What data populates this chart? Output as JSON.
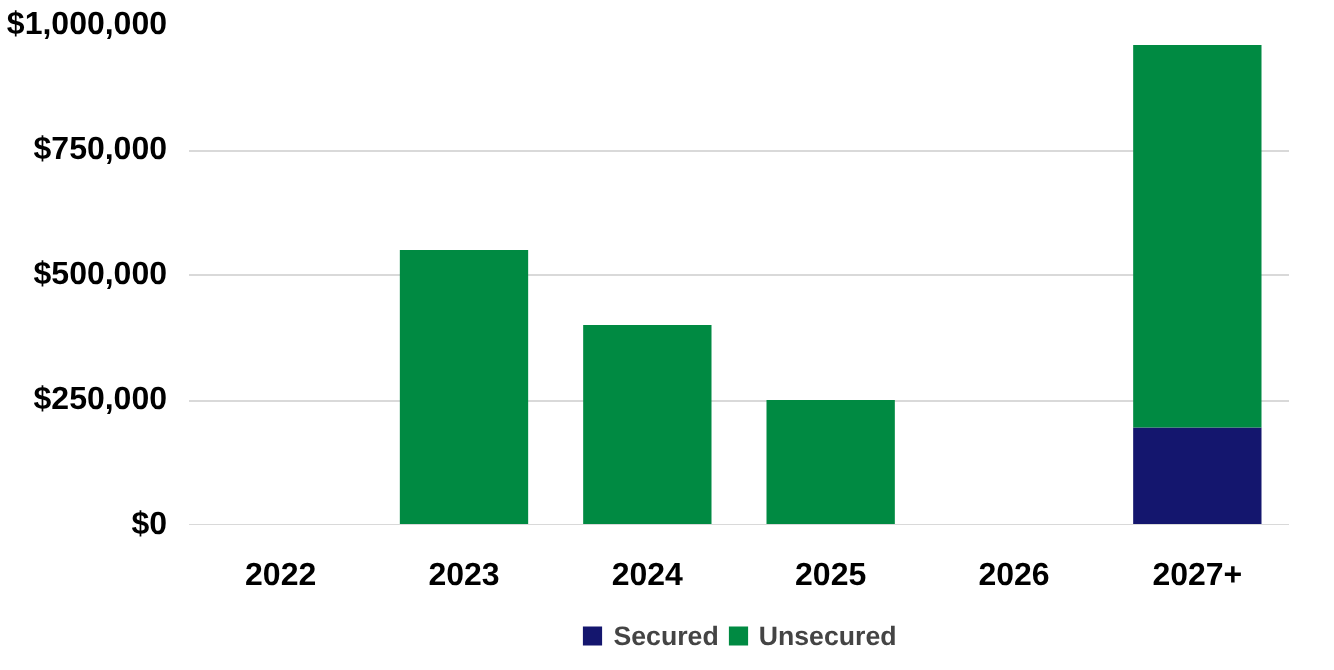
{
  "chart_data": {
    "type": "bar",
    "stacked": true,
    "categories": [
      "2022",
      "2023",
      "2024",
      "2025",
      "2026",
      "2027+"
    ],
    "series": [
      {
        "name": "Secured",
        "color": "#14166e",
        "values": [
          0,
          0,
          0,
          0,
          0,
          195000
        ]
      },
      {
        "name": "Unsecured",
        "color": "#008a42",
        "values": [
          0,
          550000,
          400000,
          250000,
          0,
          765000
        ]
      }
    ],
    "ylim": [
      0,
      1000000
    ],
    "yticks": [
      {
        "value": 0,
        "label": "$0"
      },
      {
        "value": 250000,
        "label": "$250,000"
      },
      {
        "value": 500000,
        "label": "$500,000"
      },
      {
        "value": 750000,
        "label": "$750,000"
      },
      {
        "value": 1000000,
        "label": "$1,000,000"
      }
    ],
    "grid": "y",
    "legend": "bottom"
  }
}
